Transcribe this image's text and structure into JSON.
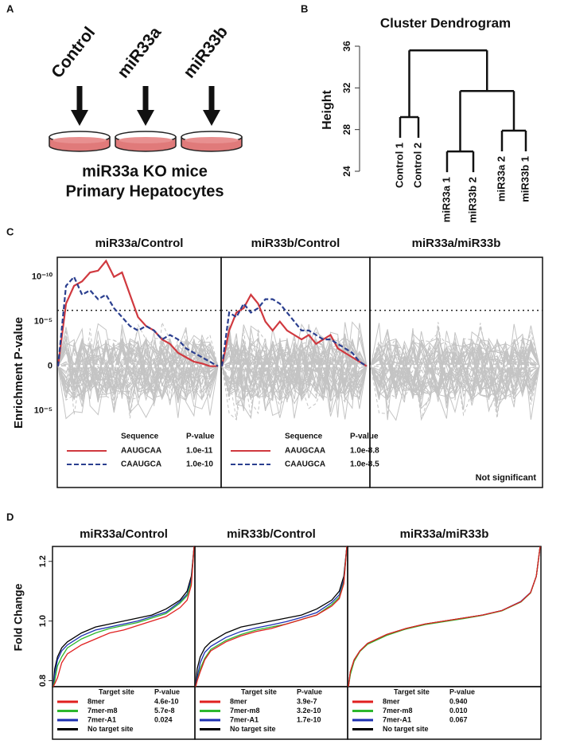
{
  "panel_a": {
    "label": "A",
    "conditions": [
      "Control",
      "miR33a",
      "miR33b"
    ],
    "caption": [
      "miR33a KO mice",
      "Primary Hepatocytes"
    ]
  },
  "panel_b": {
    "label": "B",
    "title": "Cluster Dendrogram",
    "y_label": "Height",
    "ylim": [
      24,
      36
    ],
    "yticks": [
      24,
      28,
      32,
      36
    ],
    "leaves": [
      {
        "name": "Control 1",
        "color": "#111111"
      },
      {
        "name": "Control 2",
        "color": "#111111"
      },
      {
        "name": "miR33a 1",
        "color": "#d9534f"
      },
      {
        "name": "miR33b 2",
        "color": "#2f5a9e"
      },
      {
        "name": "miR33a 2",
        "color": "#d9534f"
      },
      {
        "name": "miR33b 1",
        "color": "#2f5a9e"
      }
    ],
    "merge_heights": [
      29.2,
      25.9,
      27.9,
      31.7,
      35.6
    ]
  },
  "panel_c": {
    "label": "C",
    "y_label": "Enrichment P-value",
    "ylim": [
      -13.6,
      12.2
    ],
    "yticks": [
      {
        "value": 10,
        "label": "10⁻¹⁰"
      },
      {
        "value": 5,
        "label": "10⁻⁵"
      },
      0,
      {
        "value": -5,
        "label": "10⁻⁵"
      }
    ],
    "threshold": 6.25,
    "legend_header": [
      "Sequence",
      "P-value"
    ],
    "panels": [
      {
        "title": "miR33a/Control",
        "series": [
          {
            "name": "AAUGCAA",
            "color": "#d0393f",
            "dashed": false,
            "p_value": "1.0e-11",
            "values": [
              0,
              7,
              9,
              9.5,
              10.5,
              10.7,
              11.8,
              10,
              10.5,
              8,
              5.5,
              4.5,
              4,
              3,
              2.5,
              1.5,
              1,
              0.5,
              0.3,
              0,
              0
            ]
          },
          {
            "name": "CAAUGCA",
            "color": "#2b3f8f",
            "dashed": true,
            "p_value": "1.0e-10",
            "values": [
              0,
              9,
              10,
              8,
              8.5,
              7.5,
              8,
              6.5,
              5.5,
              4.5,
              4,
              4.5,
              4,
              3,
              3.5,
              3,
              2,
              1.5,
              1,
              0.5,
              0
            ]
          }
        ]
      },
      {
        "title": "miR33b/Control",
        "series": [
          {
            "name": "AAUGCAA",
            "color": "#d0393f",
            "dashed": false,
            "p_value": "1.0e-8.8",
            "values": [
              0,
              4,
              6,
              6.5,
              8,
              7,
              5,
              4,
              5,
              4,
              3.5,
              3,
              3.5,
              2.5,
              3,
              3.5,
              2,
              1.5,
              1,
              0.5,
              0
            ]
          },
          {
            "name": "CAAUGCA",
            "color": "#2b3f8f",
            "dashed": true,
            "p_value": "1.0e-8.5",
            "values": [
              0,
              6,
              5.5,
              7,
              6,
              6.5,
              7.5,
              7.5,
              7,
              6,
              5,
              4,
              4,
              3.5,
              3,
              3,
              2.5,
              2,
              1.5,
              0.5,
              0
            ]
          }
        ]
      },
      {
        "title": "miR33a/miR33b",
        "series": [],
        "note": "Not significant"
      }
    ]
  },
  "panel_d": {
    "label": "D",
    "y_label": "Fold Change",
    "ylim": [
      0.78,
      1.25
    ],
    "yticks": [
      0.8,
      {
        "value": 1,
        "label": "1.0"
      },
      1.2
    ],
    "x": [
      0,
      0.01,
      0.03,
      0.06,
      0.1,
      0.2,
      0.3,
      0.4,
      0.5,
      0.6,
      0.7,
      0.8,
      0.9,
      0.95,
      0.98,
      1
    ],
    "legend_header": [
      "Target site",
      "P-value"
    ],
    "panels": [
      {
        "title": "miR33a/Control",
        "series": [
          {
            "name": "8mer",
            "color": "#e0201f",
            "p_value": "4.6e-10",
            "values": [
              0.78,
              0.79,
              0.81,
              0.86,
              0.89,
              0.92,
              0.94,
              0.96,
              0.97,
              0.985,
              1.0,
              1.015,
              1.045,
              1.07,
              1.12,
              1.25
            ]
          },
          {
            "name": "7mer-m8",
            "color": "#2db82d",
            "p_value": "5.7e-8",
            "values": [
              0.78,
              0.8,
              0.85,
              0.88,
              0.91,
              0.94,
              0.96,
              0.975,
              0.985,
              0.995,
              1.01,
              1.025,
              1.06,
              1.085,
              1.13,
              1.25
            ]
          },
          {
            "name": "7mer-A1",
            "color": "#1c2fb0",
            "p_value": "0.024",
            "values": [
              0.78,
              0.82,
              0.87,
              0.9,
              0.92,
              0.95,
              0.97,
              0.98,
              0.99,
              1.0,
              1.015,
              1.03,
              1.065,
              1.09,
              1.14,
              1.25
            ]
          },
          {
            "name": "No target site",
            "color": "#000000",
            "values": [
              0.78,
              0.84,
              0.88,
              0.91,
              0.93,
              0.96,
              0.98,
              0.99,
              1.0,
              1.01,
              1.02,
              1.04,
              1.07,
              1.1,
              1.15,
              1.25
            ]
          }
        ]
      },
      {
        "title": "miR33b/Control",
        "series": [
          {
            "name": "8mer",
            "color": "#e0201f",
            "p_value": "3.9e-7",
            "values": [
              0.78,
              0.8,
              0.83,
              0.87,
              0.9,
              0.93,
              0.95,
              0.965,
              0.975,
              0.99,
              1.005,
              1.02,
              1.05,
              1.075,
              1.125,
              1.25
            ]
          },
          {
            "name": "7mer-m8",
            "color": "#2db82d",
            "p_value": "3.2e-10",
            "values": [
              0.78,
              0.8,
              0.84,
              0.875,
              0.905,
              0.935,
              0.955,
              0.97,
              0.98,
              0.99,
              1.005,
              1.02,
              1.055,
              1.08,
              1.13,
              1.25
            ]
          },
          {
            "name": "7mer-A1",
            "color": "#1c2fb0",
            "p_value": "1.7e-10",
            "values": [
              0.78,
              0.81,
              0.86,
              0.895,
              0.915,
              0.945,
              0.965,
              0.977,
              0.987,
              0.998,
              1.012,
              1.028,
              1.062,
              1.088,
              1.138,
              1.25
            ]
          },
          {
            "name": "No target site",
            "color": "#000000",
            "values": [
              0.78,
              0.84,
              0.88,
              0.91,
              0.93,
              0.96,
              0.98,
              0.99,
              1.0,
              1.01,
              1.02,
              1.04,
              1.07,
              1.1,
              1.15,
              1.25
            ]
          }
        ]
      },
      {
        "title": "miR33a/miR33b",
        "series": [
          {
            "name": "8mer",
            "color": "#e0201f",
            "p_value": "0.940",
            "values": [
              0.78,
              0.83,
              0.87,
              0.9,
              0.925,
              0.955,
              0.975,
              0.99,
              1.0,
              1.01,
              1.02,
              1.035,
              1.065,
              1.095,
              1.15,
              1.25
            ]
          },
          {
            "name": "7mer-m8",
            "color": "#2db82d",
            "p_value": "0.010",
            "values": [
              0.78,
              0.82,
              0.865,
              0.898,
              0.922,
              0.952,
              0.973,
              0.988,
              0.998,
              1.008,
              1.019,
              1.034,
              1.064,
              1.094,
              1.15,
              1.25
            ]
          },
          {
            "name": "7mer-A1",
            "color": "#1c2fb0",
            "p_value": "0.067",
            "values": [
              0.78,
              0.825,
              0.868,
              0.9,
              0.924,
              0.954,
              0.974,
              0.989,
              0.999,
              1.009,
              1.02,
              1.035,
              1.066,
              1.096,
              1.15,
              1.25
            ]
          },
          {
            "name": "No target site",
            "color": "#000000",
            "values": [
              0.78,
              0.83,
              0.87,
              0.9,
              0.925,
              0.955,
              0.975,
              0.99,
              1.0,
              1.01,
              1.02,
              1.035,
              1.065,
              1.095,
              1.15,
              1.25
            ]
          }
        ]
      }
    ]
  }
}
